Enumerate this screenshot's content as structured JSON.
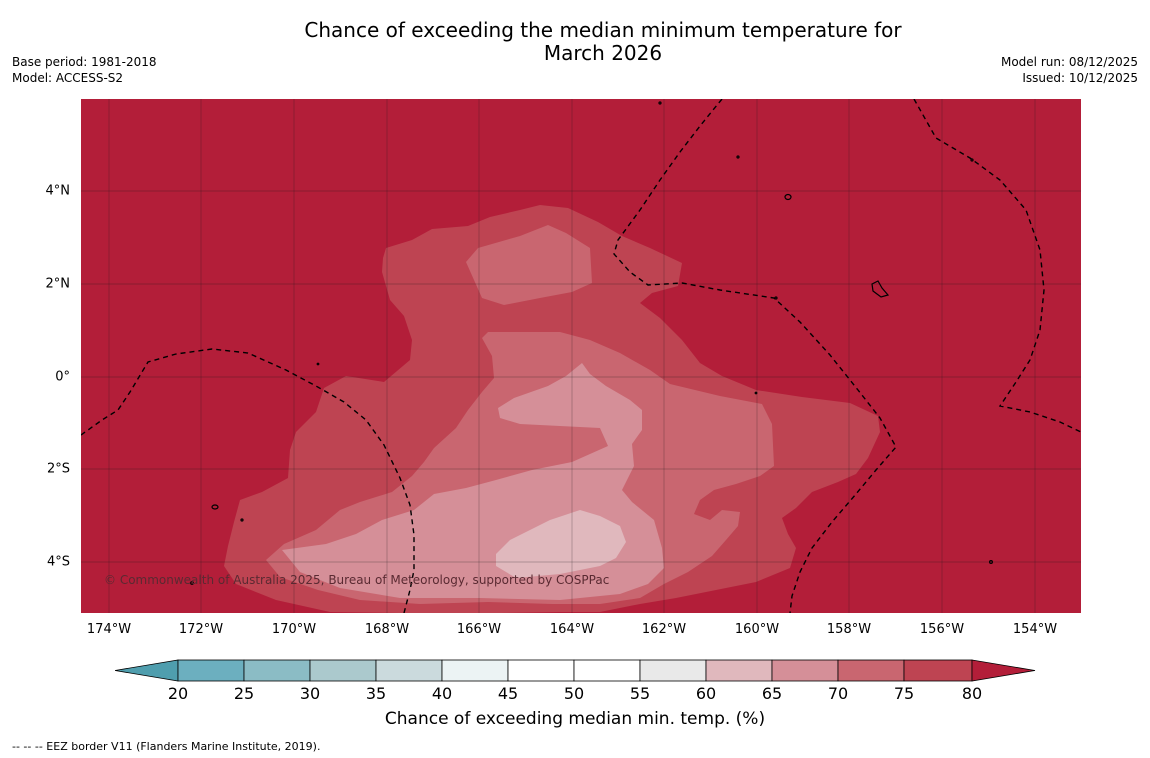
{
  "title_line1": "Chance of exceeding the median minimum temperature for",
  "title_line2": "March 2026",
  "meta_left": [
    "Base period: 1981-2018",
    "Model: ACCESS-S2"
  ],
  "meta_right": [
    "Model run: 08/12/2025",
    "Issued: 10/12/2025"
  ],
  "lat_labels": [
    "4°N",
    "2°N",
    "0°",
    "2°S",
    "4°S"
  ],
  "lon_labels": [
    "174°W",
    "172°W",
    "170°W",
    "168°W",
    "166°W",
    "164°W",
    "162°W",
    "160°W",
    "158°W",
    "156°W",
    "154°W"
  ],
  "copyright": "© Commonwealth of Australia 2025, Bureau of Meteorology, supported by COSPPac",
  "colorbar": {
    "ticks": [
      "20",
      "25",
      "30",
      "35",
      "40",
      "45",
      "50",
      "55",
      "60",
      "65",
      "70",
      "75",
      "80"
    ],
    "colors": [
      "#4f9eae",
      "#6cafbf",
      "#8bbcc5",
      "#abc9cd",
      "#cbdadd",
      "#ecf3f4",
      "#ffffff",
      "#ffffff",
      "#e9e9e9",
      "#e0b8bd",
      "#d58f98",
      "#c96670",
      "#be4452",
      "#b31e39"
    ],
    "label": "Chance of exceeding median min. temp. (%)"
  },
  "map_colors": {
    "gt80": "#b31e39",
    "p75_80": "#be4452",
    "p70_75": "#c96670",
    "p65_70": "#d58f98",
    "p60_65": "#e0b8bd"
  },
  "footnote": "--  --  -- EEZ border V11 (Flanders Marine Institute, 2019)."
}
